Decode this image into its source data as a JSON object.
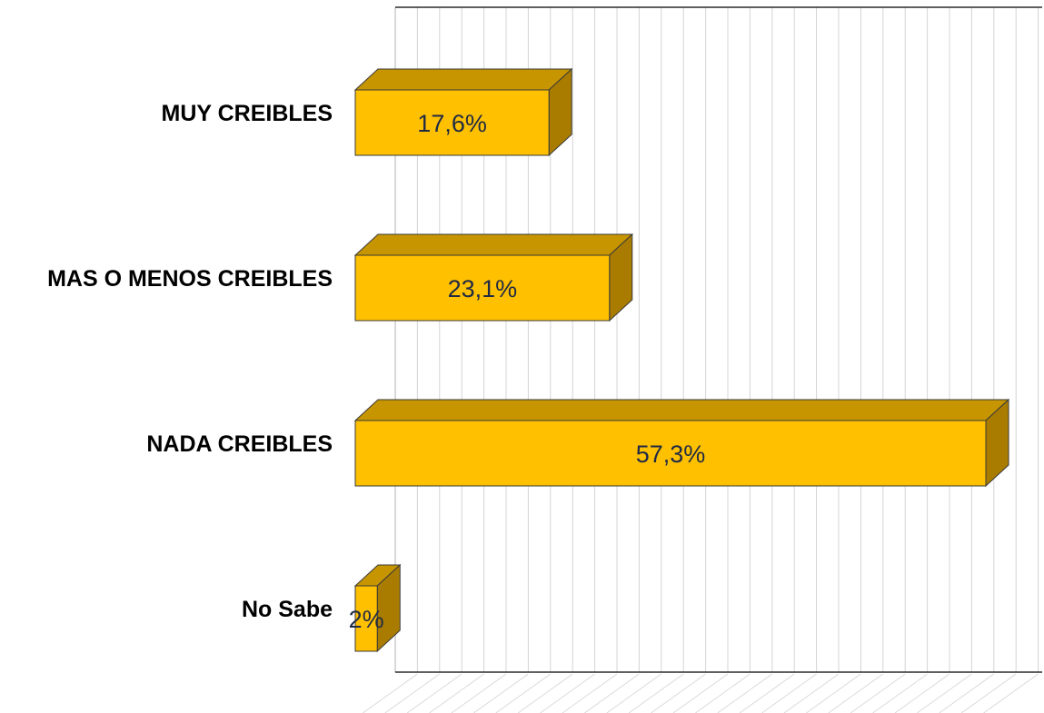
{
  "chart_data": {
    "type": "bar",
    "orientation": "horizontal",
    "style": "3d",
    "title": "",
    "xlabel": "",
    "ylabel": "",
    "categories": [
      "MUY CREIBLES",
      "MAS O MENOS CREIBLES",
      "NADA CREIBLES",
      "No Sabe"
    ],
    "values": [
      17.6,
      23.1,
      57.3,
      2
    ],
    "value_labels": [
      "17,6%",
      "23,1%",
      "57,3%",
      "2%"
    ],
    "xlim": [
      0,
      60
    ],
    "grid": true,
    "legend": "none",
    "colors": {
      "bar_front": "#FFC000",
      "bar_top": "#C79500",
      "bar_side": "#A97C00",
      "bar_edge": "#3a3a3a",
      "gridline": "#d4d4d4",
      "axis": "#000000"
    }
  }
}
